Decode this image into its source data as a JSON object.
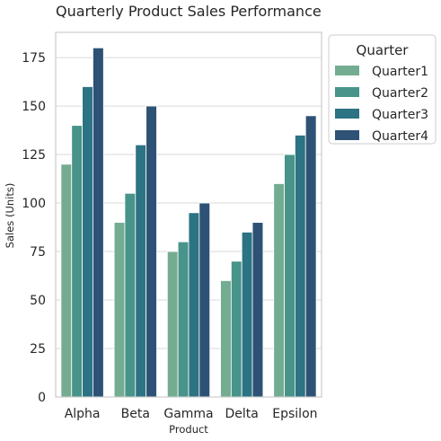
{
  "chart_data": {
    "type": "bar",
    "title": "Quarterly Product Sales Performance",
    "xlabel": "Product",
    "ylabel": "Sales (Units)",
    "categories": [
      "Alpha",
      "Beta",
      "Gamma",
      "Delta",
      "Epsilon"
    ],
    "ylim": [
      0,
      188
    ],
    "yticks": [
      0,
      25,
      50,
      75,
      100,
      125,
      150,
      175
    ],
    "grid": "horizontal",
    "legend": {
      "title": "Quarter",
      "placement": "outside-right"
    },
    "series": [
      {
        "name": "Quarter1",
        "color": "#74ac92",
        "values": [
          120,
          90,
          75,
          60,
          110
        ]
      },
      {
        "name": "Quarter2",
        "color": "#48938a",
        "values": [
          140,
          105,
          80,
          70,
          125
        ]
      },
      {
        "name": "Quarter3",
        "color": "#2c7383",
        "values": [
          160,
          130,
          95,
          85,
          135
        ]
      },
      {
        "name": "Quarter4",
        "color": "#2d5275",
        "values": [
          180,
          150,
          100,
          90,
          145
        ]
      }
    ]
  }
}
